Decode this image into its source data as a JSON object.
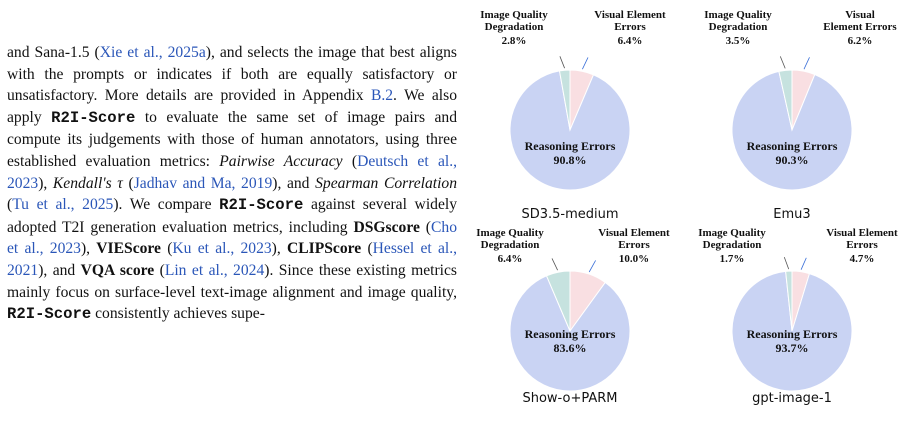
{
  "body_text": {
    "seg01": "and Sana-1.5 (",
    "seg02": "Xie et al., 2025a",
    "seg03": "), and selects the image that best aligns with the prompts or indicates if both are equally satisfactory or unsatisfactory. More details are provided in Appendix ",
    "seg04": "B.2",
    "seg05": ". We also apply ",
    "seg06": "R2I-Score",
    "seg07": " to evaluate the same set of image pairs and compute its judgements with those of human annotators, using three established evaluation metrics: ",
    "seg08": "Pairwise Accuracy",
    "seg09": " (",
    "seg10": "Deutsch et al., 2023",
    "seg11": "), ",
    "seg12": "Kendall's τ",
    "seg13": " (",
    "seg14": "Jadhav and Ma, 2019",
    "seg15": "), and ",
    "seg16": "Spearman Correlation",
    "seg17": " (",
    "seg18": "Tu et al., 2025",
    "seg19": "). We compare ",
    "seg20": "R2I-Score",
    "seg21": " against several widely adopted T2I generation evaluation metrics, including ",
    "seg22": "DSGscore",
    "seg23": " (",
    "seg24": "Cho et al., 2023",
    "seg25": "), ",
    "seg26": "VIEScore",
    "seg27": " (",
    "seg28": "Ku et al., 2023",
    "seg29": "), ",
    "seg30": "CLIPScore",
    "seg31": " (",
    "seg32": "Hessel et al., 2021",
    "seg33": "), and ",
    "seg34": "VQA score",
    "seg35": " (",
    "seg36": "Lin et al., 2024",
    "seg37": "). Since these existing metrics mainly focus on surface-level text-image alignment and image quality, ",
    "seg38": "R2I-Score",
    "seg39": " consistently achieves supe-"
  },
  "colors": {
    "reasoning": "#c9d3f3",
    "visual": "#f9dfe2",
    "quality": "#c6e2df",
    "citation": "#2a56b8"
  },
  "chart_data": [
    {
      "type": "pie",
      "title": "SD3.5-medium",
      "slices": [
        {
          "name": "Visual Element Errors",
          "value": 6.4,
          "label": "6.4%"
        },
        {
          "name": "Reasoning Errors",
          "value": 90.8,
          "label": "90.8%"
        },
        {
          "name": "Image Quality Degradation",
          "value": 2.8,
          "label": "2.8%"
        }
      ]
    },
    {
      "type": "pie",
      "title": "Emu3",
      "slices": [
        {
          "name": "Visual Element Errors",
          "value": 6.2,
          "label": "6.2%"
        },
        {
          "name": "Reasoning Errors",
          "value": 90.3,
          "label": "90.3%"
        },
        {
          "name": "Image Quality Degradation",
          "value": 3.5,
          "label": "3.5%"
        }
      ]
    },
    {
      "type": "pie",
      "title": "Show-o+PARM",
      "slices": [
        {
          "name": "Visual Element Errors",
          "value": 10.0,
          "label": "10.0%"
        },
        {
          "name": "Reasoning Errors",
          "value": 83.6,
          "label": "83.6%"
        },
        {
          "name": "Image Quality Degradation",
          "value": 6.4,
          "label": "6.4%"
        }
      ]
    },
    {
      "type": "pie",
      "title": "gpt-image-1",
      "slices": [
        {
          "name": "Visual Element Errors",
          "value": 4.7,
          "label": "4.7%"
        },
        {
          "name": "Reasoning Errors",
          "value": 93.7,
          "label": "93.7%"
        },
        {
          "name": "Image Quality Degradation",
          "value": 1.7,
          "label": "1.7%"
        }
      ]
    }
  ]
}
